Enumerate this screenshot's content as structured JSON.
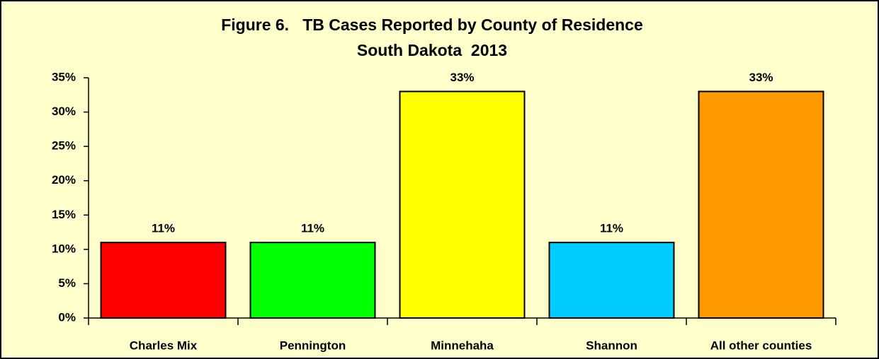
{
  "chart_data": {
    "type": "bar",
    "title": "Figure 6.   TB Cases Reported by County of Residence",
    "subtitle": "South Dakota  2013",
    "categories": [
      "Charles Mix",
      "Pennington",
      "Minnehaha",
      "Shannon",
      "All other counties"
    ],
    "values": [
      11,
      11,
      33,
      11,
      33
    ],
    "value_labels": [
      "11%",
      "11%",
      "33%",
      "11%",
      "33%"
    ],
    "colors": [
      "#ff0000",
      "#00ff00",
      "#ffff00",
      "#00ccff",
      "#ff9900"
    ],
    "ylim": [
      0,
      35
    ],
    "yticks": [
      {
        "value": 0,
        "label": "0%"
      },
      {
        "value": 5,
        "label": "5%"
      },
      {
        "value": 10,
        "label": "10%"
      },
      {
        "value": 15,
        "label": "15%"
      },
      {
        "value": 20,
        "label": "20%"
      },
      {
        "value": 25,
        "label": "25%"
      },
      {
        "value": 30,
        "label": "30%"
      },
      {
        "value": 35,
        "label": "35%"
      }
    ],
    "grid": false
  }
}
